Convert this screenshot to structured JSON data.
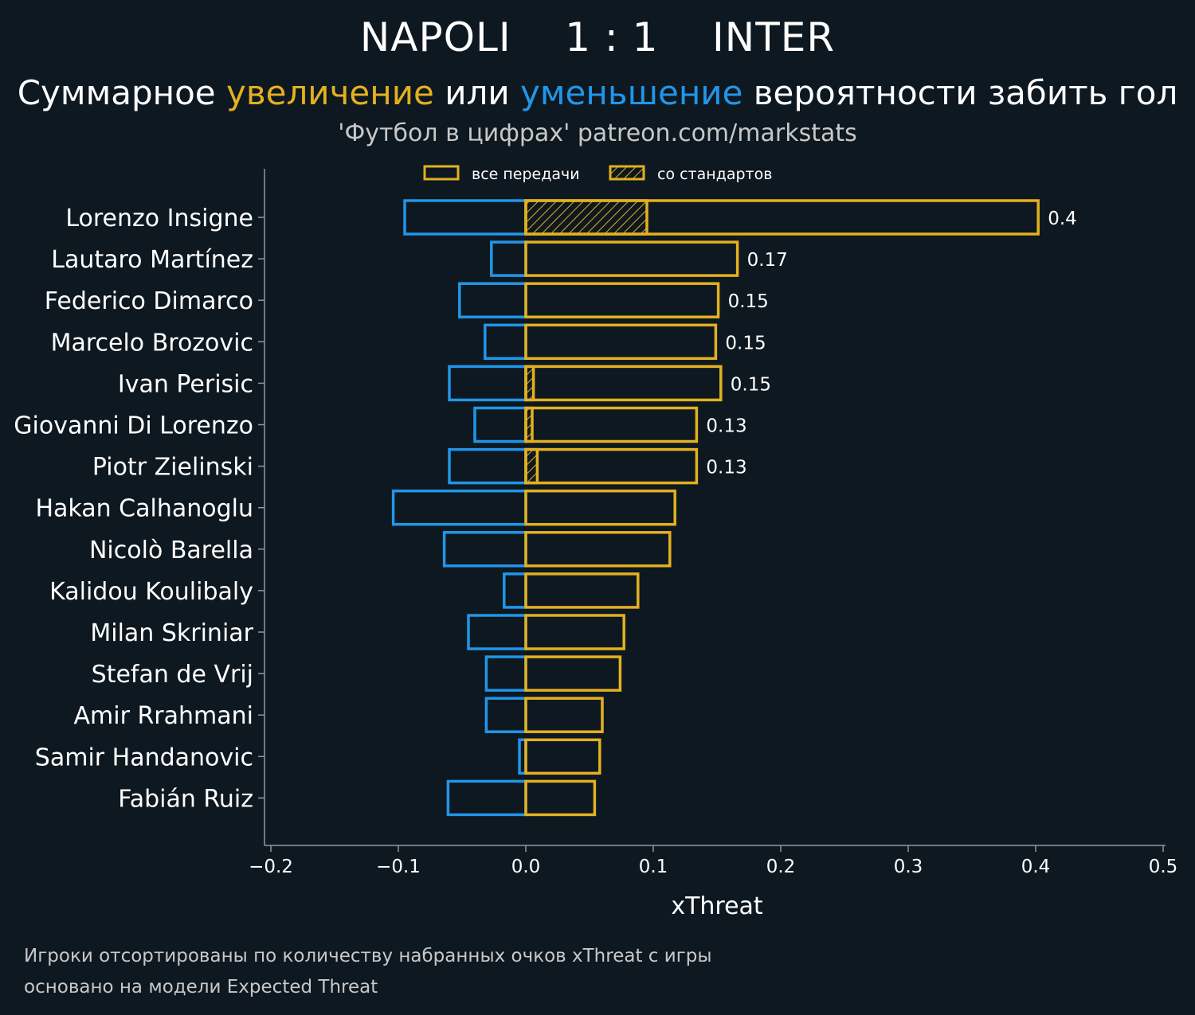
{
  "header": {
    "team_home": "NAPOLI",
    "score": "1 : 1",
    "team_away": "INTER",
    "subtitle_part1": "Суммарное ",
    "subtitle_increase": "увеличение",
    "subtitle_part2": " или ",
    "subtitle_decrease": "уменьшение",
    "subtitle_part3": " вероятности забить гол",
    "credit": "'Футбол в цифрах' patreon.com/markstats"
  },
  "colors": {
    "background": "#0e1820",
    "positive": "#e3b020",
    "negative": "#2196e8",
    "axis": "#8a9aa0"
  },
  "footer": {
    "line1": "Игроки отсортированы по количеству набранных очков xThreat с игры",
    "line2": "основано на модели Expected Threat"
  },
  "chart_data": {
    "type": "bar",
    "orientation": "horizontal",
    "xlabel": "xThreat",
    "xlim": [
      -0.2,
      0.5
    ],
    "xticks": [
      -0.2,
      -0.1,
      0.0,
      0.1,
      0.2,
      0.3,
      0.4,
      0.5
    ],
    "xtick_labels": [
      "−0.2",
      "−0.1",
      "0.0",
      "0.1",
      "0.2",
      "0.3",
      "0.4",
      "0.5"
    ],
    "legend": {
      "position": "top-center",
      "entries": [
        "все передачи",
        "со стандартов"
      ]
    },
    "categories": [
      "Lorenzo Insigne",
      "Lautaro Martínez",
      "Federico Dimarco",
      "Marcelo Brozovic",
      "Ivan Perisic",
      "Giovanni Di Lorenzo",
      "Piotr Zielinski",
      "Hakan Calhanoglu",
      "Nicolò Barella",
      "Kalidou Koulibaly",
      "Milan Skriniar",
      "Stefan de Vrij",
      "Amir Rrahmani",
      "Samir Handanovic",
      "Fabián Ruiz"
    ],
    "series": [
      {
        "name": "все передачи (увеличение)",
        "values": [
          0.402,
          0.166,
          0.151,
          0.149,
          0.153,
          0.134,
          0.134,
          0.117,
          0.113,
          0.088,
          0.077,
          0.074,
          0.06,
          0.058,
          0.054
        ]
      },
      {
        "name": "все передачи (уменьшение)",
        "values": [
          -0.095,
          -0.027,
          -0.052,
          -0.032,
          -0.06,
          -0.04,
          -0.06,
          -0.104,
          -0.064,
          -0.017,
          -0.045,
          -0.031,
          -0.031,
          -0.005,
          -0.061
        ]
      },
      {
        "name": "со стандартов",
        "values": [
          0.095,
          0,
          0,
          0,
          0.006,
          0.005,
          0.009,
          0,
          0,
          0,
          0,
          0,
          0,
          0,
          0
        ]
      }
    ],
    "value_labels": [
      "0.4",
      "0.17",
      "0.15",
      "0.15",
      "0.15",
      "0.13",
      "0.13",
      "",
      "",
      "",
      "",
      "",
      "",
      "",
      ""
    ]
  }
}
